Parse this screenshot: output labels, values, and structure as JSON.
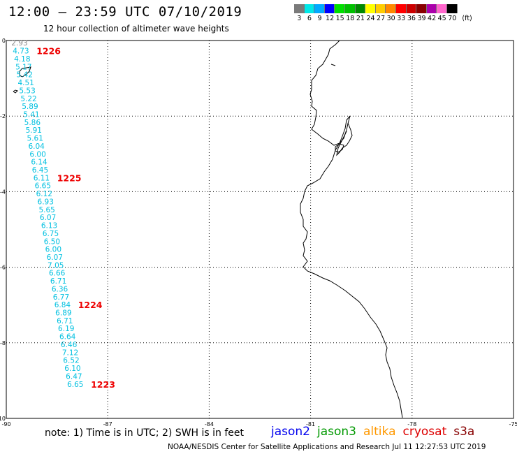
{
  "header": {
    "title": "12:00 – 23:59 UTC 07/10/2019",
    "subtitle": "12 hour collection of altimeter wave heights"
  },
  "legend": {
    "unit": "(ft)",
    "bins": [
      {
        "label": "3",
        "color": "#7a7a7a"
      },
      {
        "label": "6",
        "color": "#00e8e8"
      },
      {
        "label": "9",
        "color": "#00aaff"
      },
      {
        "label": "12",
        "color": "#0000ff"
      },
      {
        "label": "15",
        "color": "#00e000"
      },
      {
        "label": "18",
        "color": "#00c000"
      },
      {
        "label": "21",
        "color": "#008800"
      },
      {
        "label": "24",
        "color": "#ffff00"
      },
      {
        "label": "27",
        "color": "#ffcc00"
      },
      {
        "label": "30",
        "color": "#ff8800"
      },
      {
        "label": "33",
        "color": "#ff0000"
      },
      {
        "label": "36",
        "color": "#cc0000"
      },
      {
        "label": "39",
        "color": "#880000"
      },
      {
        "label": "42",
        "color": "#aa00aa"
      },
      {
        "label": "45",
        "color": "#ff66cc"
      },
      {
        "label": "70",
        "color": "#000000"
      }
    ]
  },
  "axes": {
    "lon_ticks": [
      "-90",
      "-87",
      "-84",
      "-81",
      "-78",
      "-75"
    ],
    "lat_ticks": [
      "0",
      "-2",
      "-4",
      "-6",
      "-8",
      "-10"
    ]
  },
  "track": {
    "color": "#00c0e0",
    "first_color": "#888888",
    "points": [
      {
        "lat": -0.06,
        "lon": -89.85,
        "swh": "2.93"
      },
      {
        "lat": -0.27,
        "lon": -89.81,
        "swh": "4.73"
      },
      {
        "lat": -0.48,
        "lon": -89.77,
        "swh": "4.18"
      },
      {
        "lat": -0.69,
        "lon": -89.73,
        "swh": "5.17"
      },
      {
        "lat": -0.9,
        "lon": -89.7,
        "swh": "5.42"
      },
      {
        "lat": -1.11,
        "lon": -89.66,
        "swh": "4.51"
      },
      {
        "lat": -1.32,
        "lon": -89.62,
        "swh": "5.53"
      },
      {
        "lat": -1.53,
        "lon": -89.58,
        "swh": "5.22"
      },
      {
        "lat": -1.74,
        "lon": -89.54,
        "swh": "5.89"
      },
      {
        "lat": -1.95,
        "lon": -89.5,
        "swh": "5.41"
      },
      {
        "lat": -2.16,
        "lon": -89.47,
        "swh": "5.86"
      },
      {
        "lat": -2.37,
        "lon": -89.43,
        "swh": "5.91"
      },
      {
        "lat": -2.58,
        "lon": -89.39,
        "swh": "5.61"
      },
      {
        "lat": -2.79,
        "lon": -89.35,
        "swh": "6.04"
      },
      {
        "lat": -3.0,
        "lon": -89.31,
        "swh": "6.00"
      },
      {
        "lat": -3.21,
        "lon": -89.27,
        "swh": "6.14"
      },
      {
        "lat": -3.42,
        "lon": -89.24,
        "swh": "6.45"
      },
      {
        "lat": -3.63,
        "lon": -89.2,
        "swh": "6.11"
      },
      {
        "lat": -3.84,
        "lon": -89.16,
        "swh": "6.65"
      },
      {
        "lat": -4.05,
        "lon": -89.12,
        "swh": "6.12"
      },
      {
        "lat": -4.26,
        "lon": -89.08,
        "swh": "6.93"
      },
      {
        "lat": -4.47,
        "lon": -89.04,
        "swh": "5.65"
      },
      {
        "lat": -4.68,
        "lon": -89.01,
        "swh": "6.07"
      },
      {
        "lat": -4.89,
        "lon": -88.97,
        "swh": "6.13"
      },
      {
        "lat": -5.1,
        "lon": -88.93,
        "swh": "6.75"
      },
      {
        "lat": -5.31,
        "lon": -88.89,
        "swh": "6.50"
      },
      {
        "lat": -5.52,
        "lon": -88.85,
        "swh": "6.00"
      },
      {
        "lat": -5.73,
        "lon": -88.81,
        "swh": "6.07"
      },
      {
        "lat": -5.94,
        "lon": -88.78,
        "swh": "7.05"
      },
      {
        "lat": -6.15,
        "lon": -88.74,
        "swh": "6.66"
      },
      {
        "lat": -6.36,
        "lon": -88.7,
        "swh": "6.71"
      },
      {
        "lat": -6.57,
        "lon": -88.66,
        "swh": "6.36"
      },
      {
        "lat": -6.78,
        "lon": -88.62,
        "swh": "6.77"
      },
      {
        "lat": -6.99,
        "lon": -88.58,
        "swh": "6.84"
      },
      {
        "lat": -7.2,
        "lon": -88.55,
        "swh": "6.89"
      },
      {
        "lat": -7.41,
        "lon": -88.51,
        "swh": "6.71"
      },
      {
        "lat": -7.62,
        "lon": -88.47,
        "swh": "6.19"
      },
      {
        "lat": -7.83,
        "lon": -88.43,
        "swh": "6.64"
      },
      {
        "lat": -8.04,
        "lon": -88.39,
        "swh": "6.46"
      },
      {
        "lat": -8.25,
        "lon": -88.35,
        "swh": "7.12"
      },
      {
        "lat": -8.46,
        "lon": -88.32,
        "swh": "6.52"
      },
      {
        "lat": -8.67,
        "lon": -88.28,
        "swh": "6.10"
      },
      {
        "lat": -8.88,
        "lon": -88.24,
        "swh": "6.47"
      },
      {
        "lat": -9.09,
        "lon": -88.2,
        "swh": "6.65"
      }
    ],
    "time_marks": [
      {
        "label": "1226",
        "lat": -0.27,
        "lon": -89.81
      },
      {
        "label": "1225",
        "lat": -3.63,
        "lon": -89.2
      },
      {
        "label": "1224",
        "lat": -6.99,
        "lon": -88.58
      },
      {
        "label": "1223",
        "lat": -9.09,
        "lon": -88.2
      }
    ],
    "time_mark_color": "#ee0000"
  },
  "footer": {
    "note": "note:  1) Time is in UTC;  2) SWH is in feet",
    "satellites": [
      {
        "name": "jason2",
        "color": "#0000ee"
      },
      {
        "name": "jason3",
        "color": "#009900"
      },
      {
        "name": "altika",
        "color": "#ff9900"
      },
      {
        "name": "cryosat",
        "color": "#dd0000"
      },
      {
        "name": "s3a",
        "color": "#880000"
      }
    ],
    "credit": "NOAA/NESDIS Center for Satellite Applications and Research     Jul 11 12:27:53 UTC 2019"
  }
}
